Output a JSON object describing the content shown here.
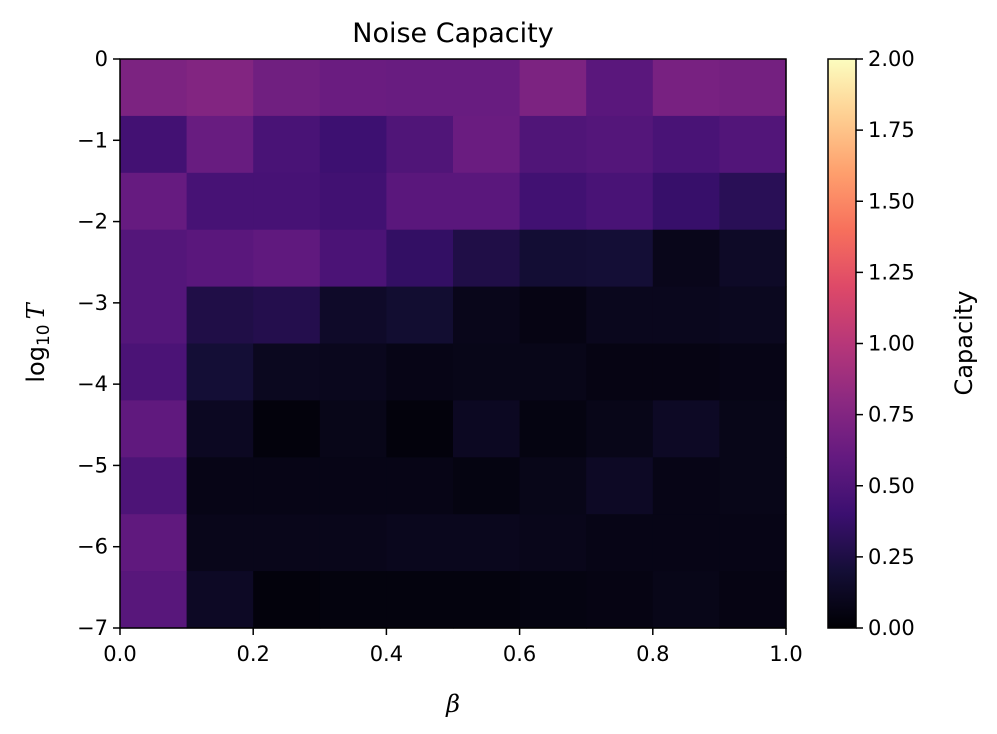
{
  "chart_data": {
    "type": "heatmap",
    "title": "Noise Capacity",
    "xlabel": "β",
    "ylabel_prefix": "log",
    "ylabel_subscript": "10",
    "ylabel_variable": "T",
    "colorbar_label": "Capacity",
    "colormap": "magma",
    "xlim": [
      0.0,
      1.0
    ],
    "ylim": [
      -7,
      0
    ],
    "clim": [
      0.0,
      2.0
    ],
    "x_ticks": [
      0.0,
      0.2,
      0.4,
      0.6,
      0.8,
      1.0
    ],
    "x_tick_labels": [
      "0.0",
      "0.2",
      "0.4",
      "0.6",
      "0.8",
      "1.0"
    ],
    "y_ticks": [
      0,
      -1,
      -2,
      -3,
      -4,
      -5,
      -6,
      -7
    ],
    "y_tick_labels": [
      "0",
      "−1",
      "−2",
      "−3",
      "−4",
      "−5",
      "−6",
      "−7"
    ],
    "colorbar_ticks": [
      0.0,
      0.25,
      0.5,
      0.75,
      1.0,
      1.25,
      1.5,
      1.75,
      2.0
    ],
    "colorbar_tick_labels": [
      "0.00",
      "0.25",
      "0.50",
      "0.75",
      "1.00",
      "1.25",
      "1.50",
      "1.75",
      "2.00"
    ],
    "x_bin_edges": [
      0.0,
      0.1,
      0.2,
      0.3,
      0.4,
      0.5,
      0.6,
      0.7,
      0.8,
      0.9,
      1.0
    ],
    "y_bin_edges": [
      0,
      -0.7,
      -1.4,
      -2.1,
      -2.8,
      -3.5,
      -4.2,
      -4.9,
      -5.6,
      -6.3,
      -7.0
    ],
    "values": [
      [
        0.72,
        0.75,
        0.66,
        0.63,
        0.62,
        0.62,
        0.72,
        0.55,
        0.7,
        0.68
      ],
      [
        0.44,
        0.62,
        0.47,
        0.41,
        0.5,
        0.63,
        0.5,
        0.52,
        0.47,
        0.51
      ],
      [
        0.61,
        0.46,
        0.46,
        0.43,
        0.55,
        0.55,
        0.43,
        0.47,
        0.38,
        0.31
      ],
      [
        0.52,
        0.55,
        0.58,
        0.48,
        0.36,
        0.26,
        0.19,
        0.2,
        0.09,
        0.14
      ],
      [
        0.52,
        0.26,
        0.28,
        0.15,
        0.18,
        0.09,
        0.06,
        0.1,
        0.1,
        0.11
      ],
      [
        0.48,
        0.2,
        0.11,
        0.1,
        0.07,
        0.08,
        0.08,
        0.06,
        0.06,
        0.07
      ],
      [
        0.58,
        0.12,
        0.03,
        0.08,
        0.03,
        0.12,
        0.05,
        0.08,
        0.13,
        0.08
      ],
      [
        0.49,
        0.07,
        0.07,
        0.07,
        0.07,
        0.05,
        0.08,
        0.13,
        0.07,
        0.08
      ],
      [
        0.58,
        0.09,
        0.09,
        0.09,
        0.1,
        0.1,
        0.09,
        0.07,
        0.07,
        0.07
      ],
      [
        0.54,
        0.13,
        0.03,
        0.04,
        0.04,
        0.04,
        0.05,
        0.06,
        0.08,
        0.06
      ]
    ]
  }
}
